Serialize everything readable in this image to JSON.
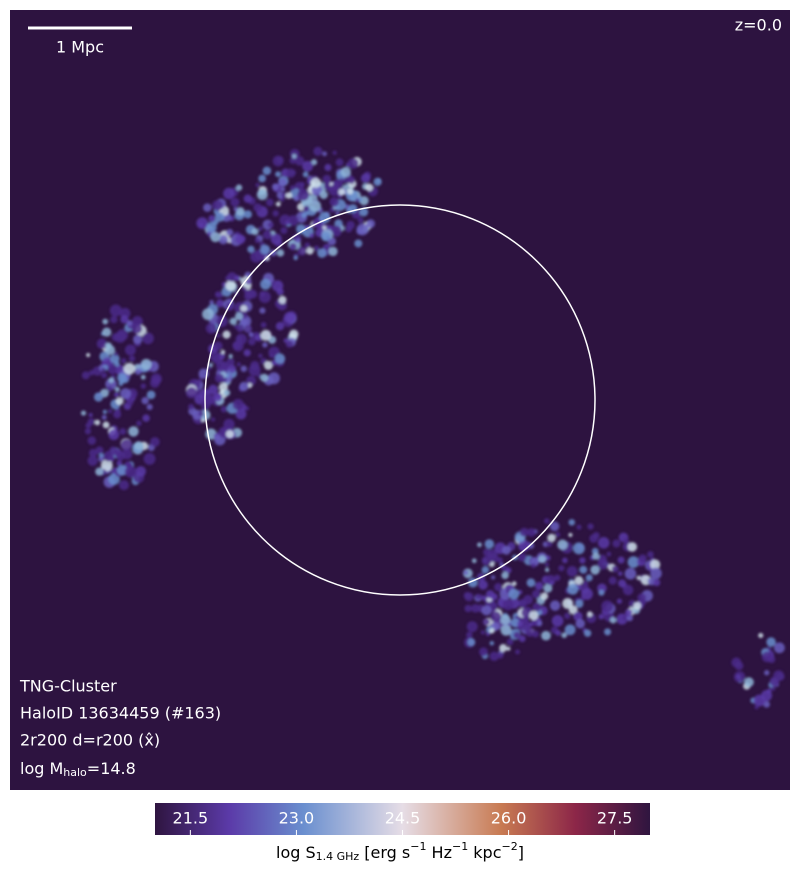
{
  "chart_data": {
    "type": "image",
    "redshift_label": "z=0.0",
    "scale_bar_label": "1 Mpc",
    "info_lines": [
      "TNG-Cluster",
      "HaloID 13634459 (#163)",
      "2r200 d=r200 (x̂)"
    ],
    "mass_label": [
      "log M",
      "halo",
      "=14.8"
    ],
    "colorbar_label": [
      "log S",
      "1.4 GHz",
      " [erg s",
      "−1",
      " Hz",
      "−1",
      " kpc",
      "−2",
      "]"
    ],
    "clim": [
      21,
      28
    ],
    "cticks": [
      21.5,
      {
        "value": 23,
        "label": "23.0"
      },
      24.5,
      {
        "value": 26,
        "label": "26.0"
      },
      27.5
    ]
  }
}
